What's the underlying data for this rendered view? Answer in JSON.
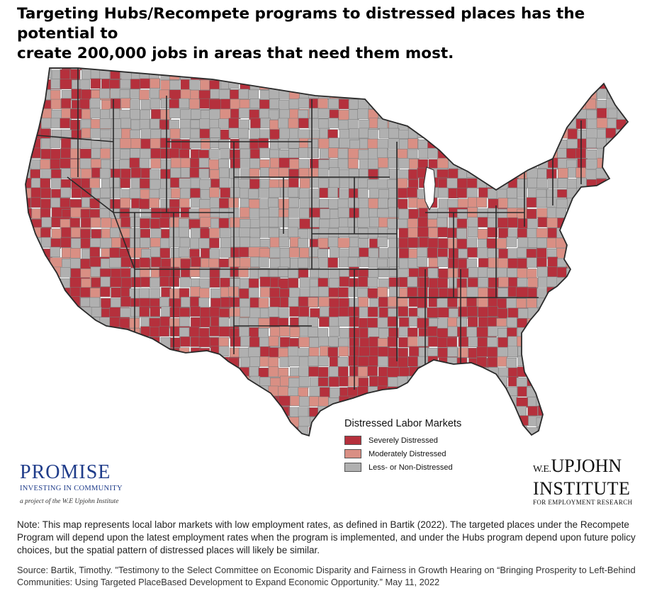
{
  "title": {
    "line1": "Targeting Hubs/Recompete programs to distressed places has the potential to",
    "line2": "create 200,000 jobs in areas that need them most."
  },
  "colors": {
    "severe": "#b5303c",
    "moderate": "#d98f84",
    "none": "#b0b0b0",
    "border": "#2a2a2a"
  },
  "legend": {
    "title": "Distressed Labor Markets",
    "items": [
      {
        "label": "Severely Distressed",
        "color": "#b5303c"
      },
      {
        "label": "Moderately Distressed",
        "color": "#d98f84"
      },
      {
        "label": "Less- or Non-Distressed",
        "color": "#b0b0b0"
      }
    ]
  },
  "logos": {
    "promise": {
      "name": "PROMISE",
      "subtitle": "INVESTING IN COMMUNITY",
      "tagline": "a project of the W.E Upjohn Institute"
    },
    "upjohn": {
      "prefix": "W.E.",
      "line1": "UPJOHN",
      "line2": "INSTITUTE",
      "line3": "FOR EMPLOYMENT RESEARCH"
    }
  },
  "note": "Note: This map represents local labor markets with low employment rates, as defined in Bartik (2022). The targeted places under the Recompete Program will depend upon the latest employment rates when the program is implemented, and under the Hubs program depend upon future policy choices, but the spatial pattern of distressed places will likely be similar.",
  "source": "Source: Bartik, Timothy. \"Testimony to the Select Committee on Economic Disparity and Fairness in Growth Hearing on “Bringing Prosperity to Left-Behind Communities: Using Targeted PlaceBased Development to Expand Economic Opportunity.” May 11, 2022"
}
